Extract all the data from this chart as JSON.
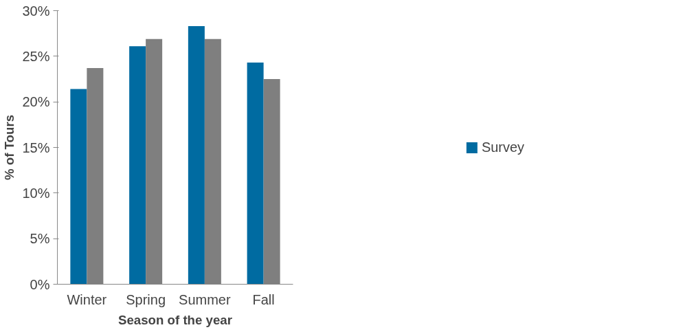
{
  "chart_data": {
    "type": "bar",
    "xlabel": "Season of the year",
    "ylabel": "% of Tours",
    "categories": [
      "Winter",
      "Spring",
      "Summer",
      "Fall"
    ],
    "series": [
      {
        "name": "Survey",
        "color": "#006ba1",
        "values": [
          21.4,
          26.1,
          28.3,
          24.3
        ]
      },
      {
        "color": "#7f7f7f",
        "values": [
          23.7,
          26.9,
          26.9,
          22.5
        ]
      }
    ],
    "ylim": [
      0,
      30
    ],
    "yticks": [
      {
        "value": 0,
        "label": "0%"
      },
      {
        "value": 5,
        "label": "5%"
      },
      {
        "value": 10,
        "label": "10%"
      },
      {
        "value": 15,
        "label": "15%"
      },
      {
        "value": 20,
        "label": "20%"
      },
      {
        "value": 25,
        "label": "25%"
      },
      {
        "value": 30,
        "label": "30%"
      }
    ],
    "grid": false,
    "legend": "right"
  }
}
